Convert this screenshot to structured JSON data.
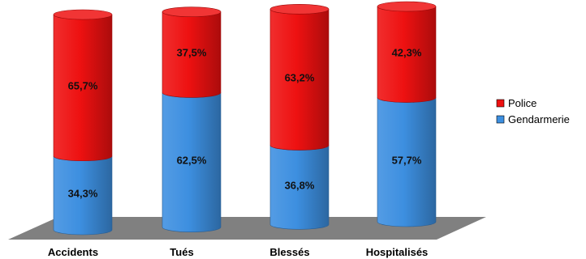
{
  "chart_data": {
    "type": "bar",
    "stacked": true,
    "percent_stacked": true,
    "three_d": true,
    "categories": [
      "Accidents",
      "Tués",
      "Blessés",
      "Hospitalisés"
    ],
    "series": [
      {
        "name": "Gendarmerie",
        "color": "#3d8fe0",
        "values": [
          34.3,
          62.5,
          36.8,
          57.7
        ],
        "labels": [
          "34,3%",
          "62,5%",
          "36,8%",
          "57,7%"
        ]
      },
      {
        "name": "Police",
        "color": "#ee1111",
        "values": [
          65.7,
          37.5,
          63.2,
          42.3
        ],
        "labels": [
          "65,7%",
          "37,5%",
          "63,2%",
          "42,3%"
        ]
      }
    ],
    "ylim": [
      0,
      100
    ],
    "legend_position": "right",
    "legend_order": [
      "Police",
      "Gendarmerie"
    ],
    "grid": false,
    "floor_color": "#808080"
  }
}
